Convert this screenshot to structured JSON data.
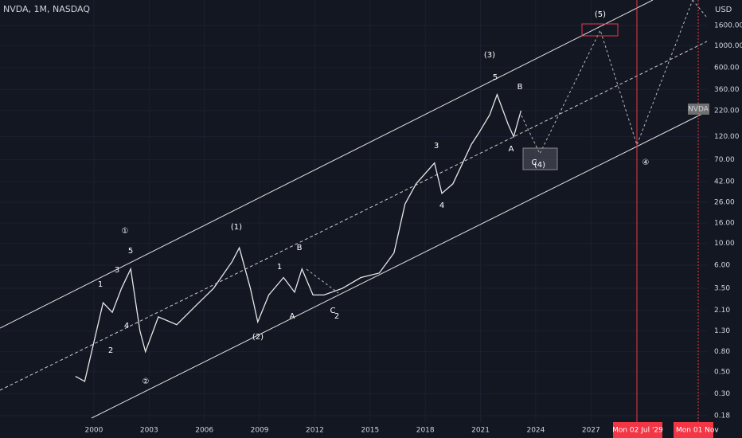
{
  "header": {
    "title": "NVDA, 1M, NASDAQ",
    "currency": "USD",
    "price_tag": "NVDA"
  },
  "chart_data": {
    "type": "line",
    "log_scale": true,
    "color": "#e6e6e6",
    "series": [
      {
        "name": "NVDA",
        "x": [
          1999.0,
          1999.5,
          2000.0,
          2000.5,
          2001.0,
          2001.5,
          2002.0,
          2002.5,
          2002.8,
          2003.5,
          2004.5,
          2005.5,
          2006.5,
          2007.5,
          2007.9,
          2008.5,
          2008.9,
          2009.5,
          2010.3,
          2010.9,
          2011.3,
          2011.9,
          2012.5,
          2013.5,
          2014.5,
          2015.5,
          2016.3,
          2016.9,
          2017.5,
          2018.5,
          2018.9,
          2019.5,
          2020.5,
          2020.9,
          2021.5,
          2021.9,
          2022.5,
          2022.8,
          2023.2
        ],
        "values": [
          0.45,
          0.4,
          1.0,
          2.5,
          2.0,
          3.5,
          5.5,
          1.3,
          0.8,
          1.8,
          1.5,
          2.3,
          3.5,
          6.5,
          9.0,
          3.5,
          1.6,
          3.0,
          4.5,
          3.2,
          5.5,
          3.0,
          3.0,
          3.5,
          4.5,
          5.0,
          8.0,
          25,
          40,
          65,
          32,
          40,
          100,
          130,
          200,
          320,
          160,
          120,
          220
        ]
      }
    ],
    "xlim": [
      1994.9,
      2033.3
    ],
    "ylim": [
      0.155,
      2900
    ],
    "xticks": [
      2000,
      2003,
      2006,
      2009,
      2012,
      2015,
      2018,
      2021,
      2024,
      2027
    ],
    "yticks": [
      {
        "value": 0.18,
        "label": "0.18"
      },
      {
        "value": 0.3,
        "label": "0.30"
      },
      {
        "value": 0.5,
        "label": "0.50"
      },
      {
        "value": 0.8,
        "label": "0.80"
      },
      {
        "value": 1.3,
        "label": "1.30"
      },
      {
        "value": 2.1,
        "label": "2.10"
      },
      {
        "value": 3.5,
        "label": "3.50"
      },
      {
        "value": 6,
        "label": "6.00"
      },
      {
        "value": 10,
        "label": "10.00"
      },
      {
        "value": 16,
        "label": "16.00"
      },
      {
        "value": 26,
        "label": "26.00"
      },
      {
        "value": 42,
        "label": "42.00"
      },
      {
        "value": 70,
        "label": "70.00"
      },
      {
        "value": 120,
        "label": "120.00"
      },
      {
        "value": 220,
        "label": "220.00"
      },
      {
        "value": 360,
        "label": "360.00"
      },
      {
        "value": 600,
        "label": "600.00"
      },
      {
        "value": 1000,
        "label": "1000.00"
      },
      {
        "value": 1600,
        "label": "1600.00"
      }
    ],
    "markers": [
      "Mon 02 Jul '29",
      "Mon 01 Nov"
    ],
    "annotations": [
      "(5)",
      "(3)",
      "5",
      "B",
      "3",
      "A",
      "C",
      "(4)",
      "4",
      "④",
      "(1)",
      "①",
      "5",
      "B",
      "1",
      "3",
      "1",
      "4",
      "2",
      "A",
      "C",
      "2",
      "(2)",
      "②"
    ]
  }
}
